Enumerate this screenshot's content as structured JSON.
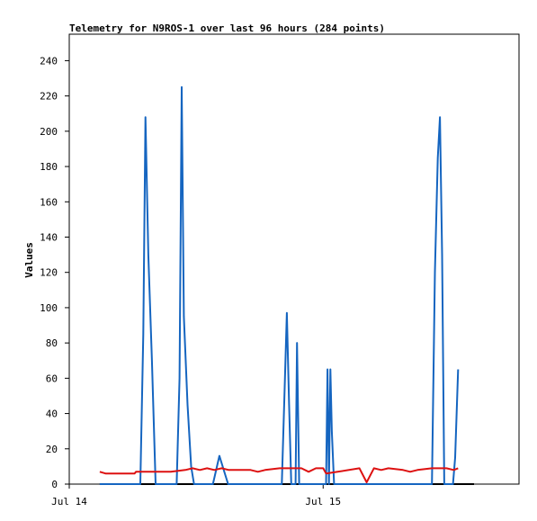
{
  "chart_data": {
    "type": "line",
    "title": "Telemetry for N9ROS-1 over last 96 hours (284 points)",
    "xlabel": "",
    "ylabel": "Values",
    "x_unit": "hours",
    "xlim": [
      0,
      62
    ],
    "ylim": [
      0,
      255
    ],
    "y_ticks": [
      0,
      20,
      40,
      60,
      80,
      100,
      120,
      140,
      160,
      180,
      200,
      220,
      240
    ],
    "x_ticks": [
      {
        "x": 0,
        "label": "Jul 14"
      },
      {
        "x": 35,
        "label": "Jul 15"
      }
    ],
    "grid": false,
    "legend": "none",
    "series": [
      {
        "color": "#000000",
        "points": [
          [
            4.2,
            0
          ],
          [
            55.8,
            0
          ]
        ]
      },
      {
        "color": "#1565c0",
        "points": [
          [
            4.2,
            0
          ],
          [
            9.8,
            0
          ],
          [
            10.2,
            85
          ],
          [
            10.5,
            208
          ],
          [
            10.9,
            130
          ],
          [
            11.4,
            70
          ],
          [
            11.9,
            0
          ],
          [
            14.8,
            0
          ],
          [
            15.2,
            60
          ],
          [
            15.5,
            225
          ],
          [
            15.8,
            95
          ],
          [
            16.3,
            45
          ],
          [
            16.8,
            10
          ],
          [
            17.2,
            0
          ],
          [
            19.8,
            0
          ],
          [
            20.7,
            16
          ],
          [
            21.9,
            0
          ],
          [
            29.3,
            0
          ],
          [
            29.7,
            55
          ],
          [
            30.0,
            97
          ],
          [
            30.3,
            45
          ],
          [
            30.6,
            0
          ],
          [
            31.2,
            0
          ],
          [
            31.4,
            80
          ],
          [
            31.7,
            0
          ],
          [
            35.4,
            0
          ],
          [
            35.6,
            65
          ],
          [
            35.8,
            0
          ],
          [
            36.0,
            65
          ],
          [
            36.2,
            30
          ],
          [
            36.5,
            0
          ],
          [
            50.0,
            0
          ],
          [
            50.4,
            120
          ],
          [
            50.8,
            185
          ],
          [
            51.1,
            208
          ],
          [
            51.4,
            130
          ],
          [
            51.7,
            0
          ],
          [
            52.9,
            0
          ],
          [
            53.2,
            15
          ],
          [
            53.6,
            65
          ]
        ]
      },
      {
        "color": "#dd1111",
        "points": [
          [
            4.2,
            7
          ],
          [
            5.0,
            6
          ],
          [
            9.0,
            6
          ],
          [
            9.2,
            7
          ],
          [
            12,
            7
          ],
          [
            14,
            7
          ],
          [
            16,
            8
          ],
          [
            17,
            9
          ],
          [
            18,
            8
          ],
          [
            19,
            9
          ],
          [
            20,
            8
          ],
          [
            21,
            9
          ],
          [
            22,
            8
          ],
          [
            25,
            8
          ],
          [
            26,
            7
          ],
          [
            27,
            8
          ],
          [
            29,
            9
          ],
          [
            32,
            9
          ],
          [
            33,
            7
          ],
          [
            34,
            9
          ],
          [
            35,
            9
          ],
          [
            35.4,
            6
          ],
          [
            37,
            7
          ],
          [
            40,
            9
          ],
          [
            41,
            1
          ],
          [
            42,
            9
          ],
          [
            43,
            8
          ],
          [
            44,
            9
          ],
          [
            46,
            8
          ],
          [
            47,
            7
          ],
          [
            48,
            8
          ],
          [
            50,
            9
          ],
          [
            52,
            9
          ],
          [
            53,
            8
          ],
          [
            53.6,
            9
          ]
        ]
      }
    ]
  }
}
